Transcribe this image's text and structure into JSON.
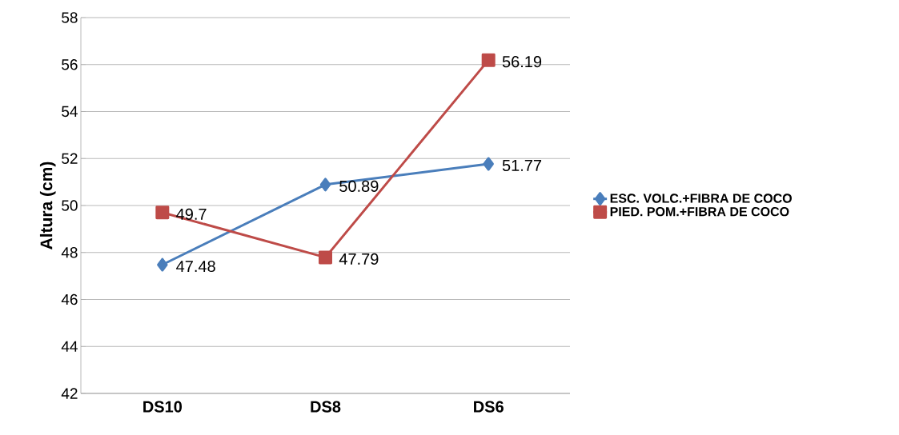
{
  "chart_data": {
    "type": "line",
    "ylabel": "Altura (cm)",
    "categories": [
      "DS10",
      "DS8",
      "DS6"
    ],
    "series": [
      {
        "name": "ESC. VOLC.+FIBRA DE COCO",
        "color": "#4a7ebb",
        "marker": "diamond",
        "values": [
          47.48,
          50.89,
          51.77
        ]
      },
      {
        "name": "PIED. POM.+FIBRA DE COCO",
        "color": "#be4b48",
        "marker": "square",
        "values": [
          49.7,
          47.79,
          56.19
        ]
      }
    ],
    "ylim": [
      42,
      58
    ],
    "yticks": [
      42,
      44,
      46,
      48,
      50,
      52,
      54,
      56,
      58
    ],
    "grid": "y",
    "legend": "right",
    "data_labels": true
  }
}
